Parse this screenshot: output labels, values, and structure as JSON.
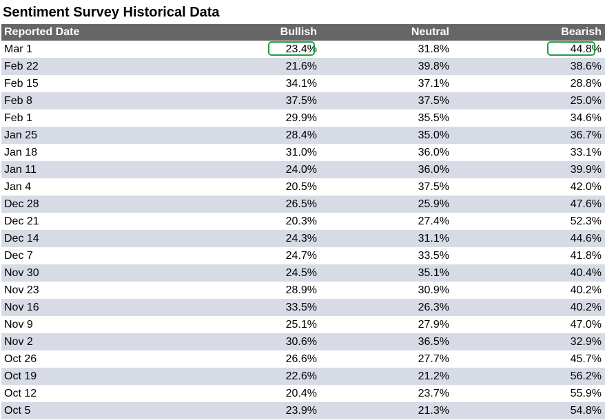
{
  "title": "Sentiment Survey Historical Data",
  "highlight_color": "#1f9d3a",
  "header_bg": "#666666",
  "row_alt_bg": "#d7dbe5",
  "columns": [
    "Reported Date",
    "Bullish",
    "Neutral",
    "Bearish"
  ],
  "rows": [
    {
      "date": "Mar 1",
      "bullish": "23.4%",
      "neutral": "31.8%",
      "bearish": "44.8%"
    },
    {
      "date": "Feb 22",
      "bullish": "21.6%",
      "neutral": "39.8%",
      "bearish": "38.6%"
    },
    {
      "date": "Feb 15",
      "bullish": "34.1%",
      "neutral": "37.1%",
      "bearish": "28.8%"
    },
    {
      "date": "Feb 8",
      "bullish": "37.5%",
      "neutral": "37.5%",
      "bearish": "25.0%"
    },
    {
      "date": "Feb 1",
      "bullish": "29.9%",
      "neutral": "35.5%",
      "bearish": "34.6%"
    },
    {
      "date": "Jan 25",
      "bullish": "28.4%",
      "neutral": "35.0%",
      "bearish": "36.7%"
    },
    {
      "date": "Jan 18",
      "bullish": "31.0%",
      "neutral": "36.0%",
      "bearish": "33.1%"
    },
    {
      "date": "Jan 11",
      "bullish": "24.0%",
      "neutral": "36.0%",
      "bearish": "39.9%"
    },
    {
      "date": "Jan 4",
      "bullish": "20.5%",
      "neutral": "37.5%",
      "bearish": "42.0%"
    },
    {
      "date": "Dec 28",
      "bullish": "26.5%",
      "neutral": "25.9%",
      "bearish": "47.6%"
    },
    {
      "date": "Dec 21",
      "bullish": "20.3%",
      "neutral": "27.4%",
      "bearish": "52.3%"
    },
    {
      "date": "Dec 14",
      "bullish": "24.3%",
      "neutral": "31.1%",
      "bearish": "44.6%"
    },
    {
      "date": "Dec 7",
      "bullish": "24.7%",
      "neutral": "33.5%",
      "bearish": "41.8%"
    },
    {
      "date": "Nov 30",
      "bullish": "24.5%",
      "neutral": "35.1%",
      "bearish": "40.4%"
    },
    {
      "date": "Nov 23",
      "bullish": "28.9%",
      "neutral": "30.9%",
      "bearish": "40.2%"
    },
    {
      "date": "Nov 16",
      "bullish": "33.5%",
      "neutral": "26.3%",
      "bearish": "40.2%"
    },
    {
      "date": "Nov 9",
      "bullish": "25.1%",
      "neutral": "27.9%",
      "bearish": "47.0%"
    },
    {
      "date": "Nov 2",
      "bullish": "30.6%",
      "neutral": "36.5%",
      "bearish": "32.9%"
    },
    {
      "date": "Oct 26",
      "bullish": "26.6%",
      "neutral": "27.7%",
      "bearish": "45.7%"
    },
    {
      "date": "Oct 19",
      "bullish": "22.6%",
      "neutral": "21.2%",
      "bearish": "56.2%"
    },
    {
      "date": "Oct 12",
      "bullish": "20.4%",
      "neutral": "23.7%",
      "bearish": "55.9%"
    },
    {
      "date": "Oct 5",
      "bullish": "23.9%",
      "neutral": "21.3%",
      "bearish": "54.8%"
    }
  ],
  "highlighted": [
    {
      "row": 0,
      "column": "bullish"
    },
    {
      "row": 0,
      "column": "bearish"
    }
  ]
}
